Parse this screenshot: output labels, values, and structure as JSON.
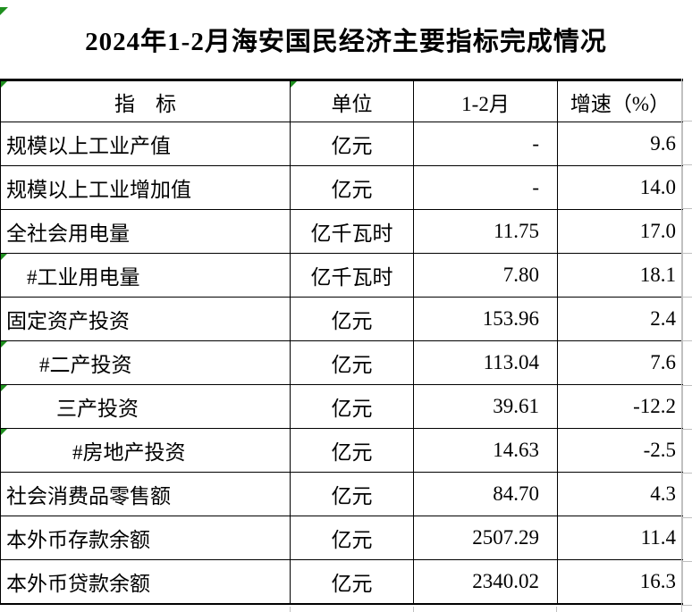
{
  "title": "2024年1-2月海安国民经济主要指标完成情况",
  "table": {
    "headers": [
      {
        "label": "指　标",
        "flag": true
      },
      {
        "label": "单位",
        "flag": true
      },
      {
        "label": "1-2月",
        "flag": false
      },
      {
        "label": "增速（%）",
        "flag": false
      }
    ],
    "rows": [
      {
        "indicator": "规模以上工业产值",
        "unit": "亿元",
        "value": "-",
        "growth": "9.6",
        "indent": 0,
        "flag": false
      },
      {
        "indicator": "规模以上工业增加值",
        "unit": "亿元",
        "value": "-",
        "growth": "14.0",
        "indent": 0,
        "flag": false
      },
      {
        "indicator": "全社会用电量",
        "unit": "亿千瓦时",
        "value": "11.75",
        "growth": "17.0",
        "indent": 0,
        "flag": false
      },
      {
        "indicator": "#工业用电量",
        "unit": "亿千瓦时",
        "value": "7.80",
        "growth": "18.1",
        "indent": 1,
        "flag": true
      },
      {
        "indicator": "固定资产投资",
        "unit": "亿元",
        "value": "153.96",
        "growth": "2.4",
        "indent": 0,
        "flag": false
      },
      {
        "indicator": "#二产投资",
        "unit": "亿元",
        "value": "113.04",
        "growth": "7.6",
        "indent": 2,
        "flag": true
      },
      {
        "indicator": "三产投资",
        "unit": "亿元",
        "value": "39.61",
        "growth": "-12.2",
        "indent": 3,
        "flag": true
      },
      {
        "indicator": "#房地产投资",
        "unit": "亿元",
        "value": "14.63",
        "growth": "-2.5",
        "indent": 4,
        "flag": true
      },
      {
        "indicator": "社会消费品零售额",
        "unit": "亿元",
        "value": "84.70",
        "growth": "4.3",
        "indent": 0,
        "flag": false
      },
      {
        "indicator": "本外币存款余额",
        "unit": "亿元",
        "value": "2507.29",
        "growth": "11.4",
        "indent": 0,
        "flag": false
      },
      {
        "indicator": "本外币贷款余额",
        "unit": "亿元",
        "value": "2340.02",
        "growth": "16.3",
        "indent": 0,
        "flag": false
      }
    ]
  },
  "colors": {
    "flag_green": "#1e8f1e",
    "border_black": "#000000",
    "gridline_gray": "#c0c0c0",
    "background": "#ffffff"
  },
  "chart_data": {
    "type": "table",
    "title": "2024年1-2月海安国民经济主要指标完成情况",
    "columns": [
      "指　标",
      "单位",
      "1-2月",
      "增速（%）"
    ],
    "rows": [
      [
        "规模以上工业产值",
        "亿元",
        "-",
        "9.6"
      ],
      [
        "规模以上工业增加值",
        "亿元",
        "-",
        "14.0"
      ],
      [
        "全社会用电量",
        "亿千瓦时",
        "11.75",
        "17.0"
      ],
      [
        "#工业用电量",
        "亿千瓦时",
        "7.80",
        "18.1"
      ],
      [
        "固定资产投资",
        "亿元",
        "153.96",
        "2.4"
      ],
      [
        "#二产投资",
        "亿元",
        "113.04",
        "7.6"
      ],
      [
        "三产投资",
        "亿元",
        "39.61",
        "-12.2"
      ],
      [
        "#房地产投资",
        "亿元",
        "14.63",
        "-2.5"
      ],
      [
        "社会消费品零售额",
        "亿元",
        "84.70",
        "4.3"
      ],
      [
        "本外币存款余额",
        "亿元",
        "2507.29",
        "11.4"
      ],
      [
        "本外币贷款余额",
        "亿元",
        "2340.02",
        "16.3"
      ]
    ]
  }
}
